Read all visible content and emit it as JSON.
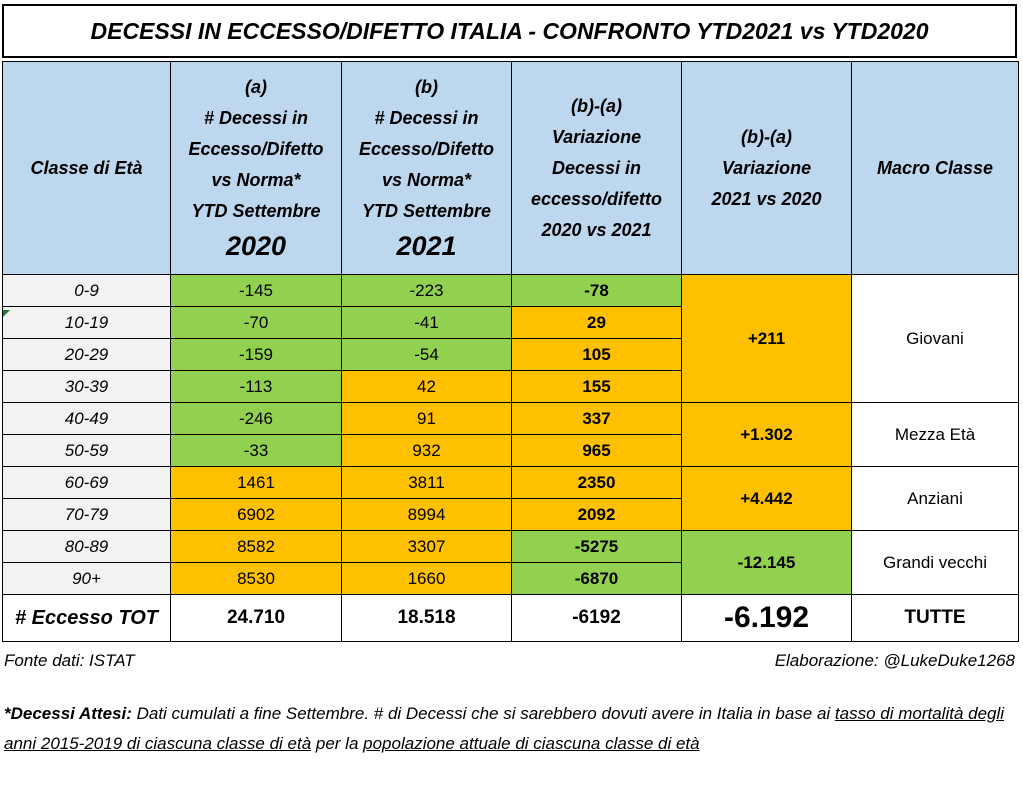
{
  "title": "DECESSI IN ECCESSO/DIFETTO ITALIA - CONFRONTO YTD2021 vs YTD2020",
  "headers": {
    "age_class": "Classe di Età",
    "col_a": {
      "tag": "(a)",
      "l1": "# Decessi in",
      "l2": "Eccesso/Difetto",
      "l3": "vs Norma*",
      "l4": "YTD Settembre",
      "year": "2020"
    },
    "col_b": {
      "tag": "(b)",
      "l1": "# Decessi in",
      "l2": "Eccesso/Difetto",
      "l3": "vs Norma*",
      "l4": "YTD Settembre",
      "year": "2021"
    },
    "col_diff": {
      "tag": "(b)-(a)",
      "l1": "Variazione",
      "l2": "Decessi in",
      "l3": "eccesso/difetto",
      "l4": "2020 vs 2021"
    },
    "col_var": {
      "tag": "(b)-(a)",
      "l1": "Variazione",
      "l2": "2021 vs 2020"
    },
    "macro": "Macro Classe"
  },
  "rows": [
    {
      "age": "0-9",
      "a": "-145",
      "b": "-223",
      "diff": "-78"
    },
    {
      "age": "10-19",
      "a": "-70",
      "b": "-41",
      "diff": "29"
    },
    {
      "age": "20-29",
      "a": "-159",
      "b": "-54",
      "diff": "105"
    },
    {
      "age": "30-39",
      "a": "-113",
      "b": "42",
      "diff": "155"
    },
    {
      "age": "40-49",
      "a": "-246",
      "b": "91",
      "diff": "337"
    },
    {
      "age": "50-59",
      "a": "-33",
      "b": "932",
      "diff": "965"
    },
    {
      "age": "60-69",
      "a": "1461",
      "b": "3811",
      "diff": "2350"
    },
    {
      "age": "70-79",
      "a": "6902",
      "b": "8994",
      "diff": "2092"
    },
    {
      "age": "80-89",
      "a": "8582",
      "b": "3307",
      "diff": "-5275"
    },
    {
      "age": "90+",
      "a": "8530",
      "b": "1660",
      "diff": "-6870"
    }
  ],
  "macro_groups": [
    {
      "variation": "+211",
      "name": "Giovani"
    },
    {
      "variation": "+1.302",
      "name": "Mezza Età"
    },
    {
      "variation": "+4.442",
      "name": "Anziani"
    },
    {
      "variation": "-12.145",
      "name": "Grandi vecchi"
    }
  ],
  "total": {
    "label": "# Eccesso TOT",
    "a": "24.710",
    "b": "18.518",
    "diff": "-6192",
    "variation": "-6.192",
    "macro": "TUTTE"
  },
  "source": "Fonte dati: ISTAT",
  "elaboration": "Elaborazione: @LukeDuke1268",
  "note": {
    "bold_prefix": "*Decessi Attesi:",
    "text1": " Dati cumulati a fine Settembre. # di Decessi che si sarebbero dovuti avere  in Italia in base ai ",
    "underline1": "tasso di mortalità degli anni 2015-2019 di ciascuna classe di età",
    "text2": "  per la  ",
    "underline2": "popolazione attuale di ciascuna classe di età"
  },
  "colors": {
    "green": "#92d050",
    "orange": "#ffc000",
    "header": "#bdd7ee",
    "age_bg": "#f2f2f2"
  }
}
